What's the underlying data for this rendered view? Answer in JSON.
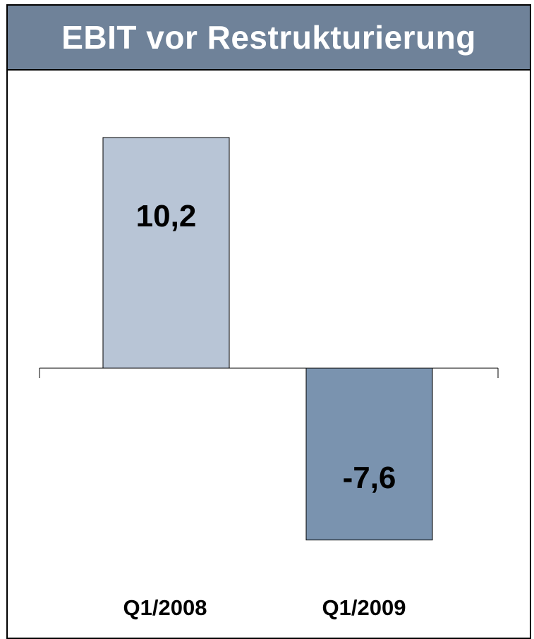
{
  "title": "EBIT vor Restrukturierung",
  "colors": {
    "header": "#6f8299",
    "bar_positive": "#b8c5d6",
    "bar_negative": "#7a93af"
  },
  "chart_data": {
    "type": "bar",
    "categories": [
      "Q1/2008",
      "Q1/2009"
    ],
    "values": [
      10.2,
      -7.6
    ],
    "data_labels": [
      "10,2",
      "-7,6"
    ],
    "title": "EBIT vor Restrukturierung",
    "ylim": [
      -7.6,
      10.2
    ],
    "grid": false
  }
}
